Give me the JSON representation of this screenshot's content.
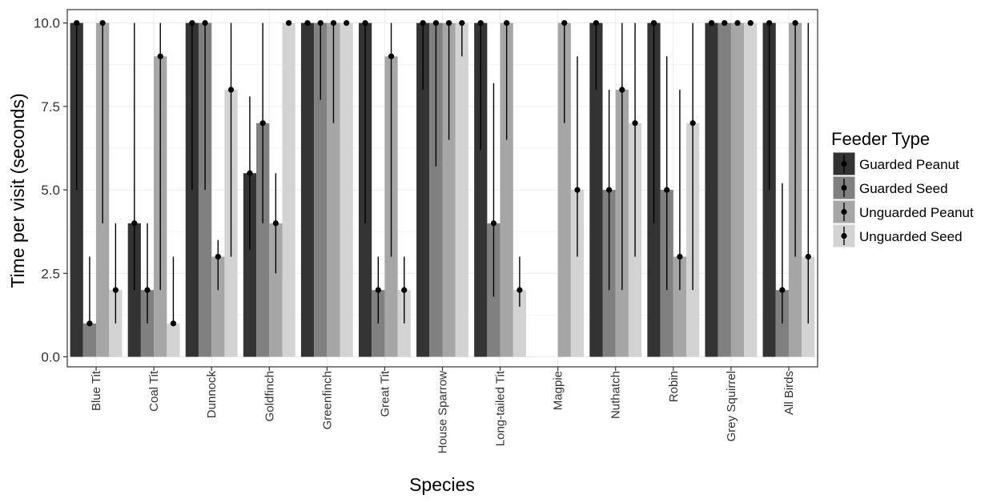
{
  "chart_data": {
    "type": "bar",
    "xlabel": "Species",
    "ylabel": "Time per visit (seconds)",
    "ylim": [
      -0.3,
      10.4
    ],
    "yticks": [
      0.0,
      2.5,
      5.0,
      7.5,
      10.0
    ],
    "ytick_labels": [
      "0.0",
      "2.5",
      "5.0",
      "7.5",
      "10.0"
    ],
    "grid": true,
    "legend_position": "right",
    "legend_title": "Feeder Type",
    "categories": [
      "Blue Tit",
      "Coal Tit",
      "Dunnock",
      "Goldfinch",
      "Greenfinch",
      "Great Tit",
      "House Sparrow",
      "Long-tailed Tit",
      "Magpie",
      "Nuthatch",
      "Robin",
      "Grey Squirrel",
      "All Birds"
    ],
    "series": [
      {
        "name": "Guarded Peanut",
        "color": "#333333",
        "values": [
          10,
          4,
          10,
          5.5,
          10,
          10,
          10,
          10,
          null,
          10,
          10,
          10,
          10
        ],
        "err_low": [
          5,
          2,
          5,
          3.2,
          10,
          4,
          8,
          6.2,
          null,
          8,
          4,
          10,
          5
        ],
        "err_high": [
          10,
          10,
          10,
          7.8,
          10,
          10,
          10,
          10,
          null,
          10,
          10,
          10,
          10
        ]
      },
      {
        "name": "Guarded Seed",
        "color": "#808080",
        "values": [
          1,
          2,
          10,
          7,
          10,
          2,
          10,
          4,
          null,
          5,
          5,
          10,
          2
        ],
        "err_low": [
          1,
          1,
          5,
          4,
          7.7,
          1,
          5.7,
          1.8,
          null,
          2,
          2,
          10,
          1
        ],
        "err_high": [
          3,
          4,
          10,
          10,
          10,
          3,
          10,
          8.2,
          null,
          8,
          9,
          10,
          5.2
        ]
      },
      {
        "name": "Unguarded Peanut",
        "color": "#a6a6a6",
        "values": [
          10,
          9,
          3,
          4,
          10,
          9,
          10,
          10,
          10,
          8,
          3,
          10,
          10
        ],
        "err_low": [
          4,
          2,
          2,
          2.5,
          7,
          3,
          6.5,
          6.5,
          7,
          2,
          2,
          10,
          3
        ],
        "err_high": [
          10,
          10,
          3.5,
          5.5,
          10,
          10,
          10,
          10,
          10,
          10,
          8,
          10,
          10
        ]
      },
      {
        "name": "Unguarded Seed",
        "color": "#d3d3d3",
        "values": [
          2,
          1,
          8,
          10,
          10,
          2,
          10,
          2,
          5,
          7,
          7,
          10,
          3
        ],
        "err_low": [
          1,
          1,
          3,
          10,
          10,
          1,
          9,
          1.5,
          3,
          3,
          2,
          10,
          1
        ],
        "err_high": [
          4,
          3,
          10,
          10,
          10,
          3,
          10,
          3,
          9,
          10,
          10,
          10,
          10
        ]
      }
    ]
  }
}
